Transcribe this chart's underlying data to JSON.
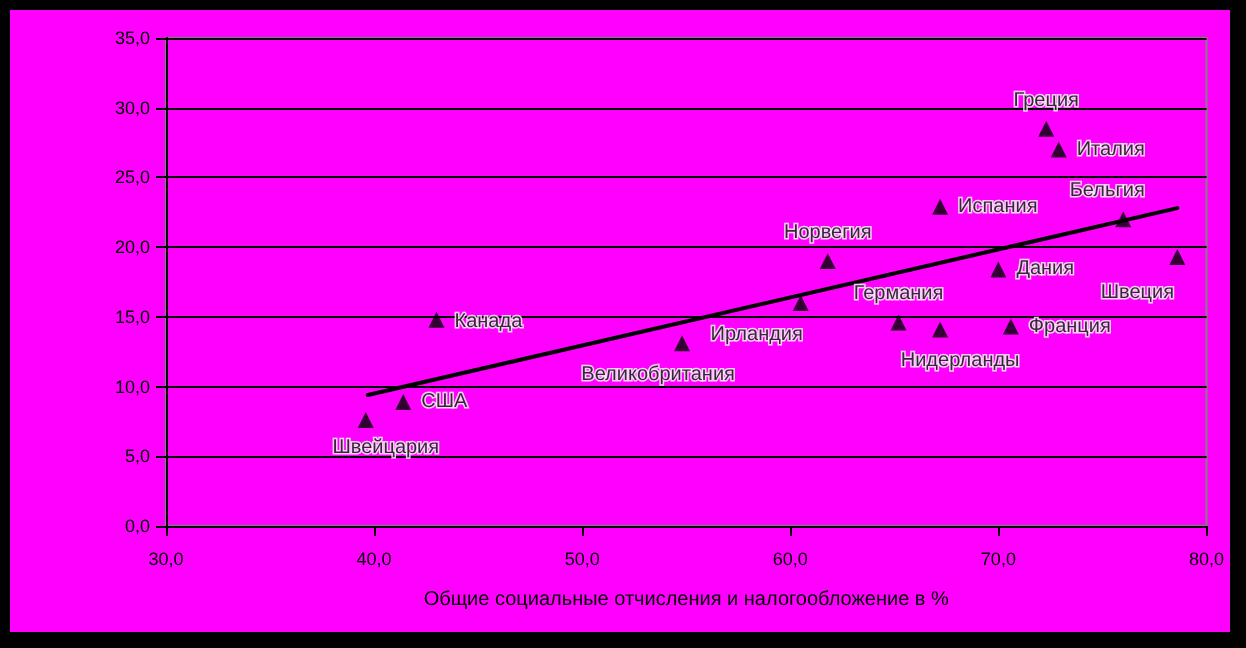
{
  "chart_data": {
    "type": "scatter",
    "xlabel": "Общие социальные отчисления и налогообложение в %",
    "xlim": [
      30,
      80
    ],
    "xticks": [
      {
        "value": 30,
        "label": "30,0"
      },
      {
        "value": 40,
        "label": "40,0"
      },
      {
        "value": 50,
        "label": "50,0"
      },
      {
        "value": 60,
        "label": "60,0"
      },
      {
        "value": 70,
        "label": "70,0"
      },
      {
        "value": 80,
        "label": "80,0"
      }
    ],
    "ylim": [
      0,
      35
    ],
    "yticks": [
      {
        "value": 0,
        "label": "0,0"
      },
      {
        "value": 5,
        "label": "5,0"
      },
      {
        "value": 10,
        "label": "10,0"
      },
      {
        "value": 15,
        "label": "15,0"
      },
      {
        "value": 20,
        "label": "20,0"
      },
      {
        "value": 25,
        "label": "25,0"
      },
      {
        "value": 30,
        "label": "30,0"
      },
      {
        "value": 35,
        "label": "35,0"
      }
    ],
    "grid": "y",
    "legend": false,
    "marker": "triangle",
    "series": [
      {
        "name": "Швейцария",
        "color": "#000000",
        "x": [
          39.6
        ],
        "values": [
          7.6
        ]
      },
      {
        "name": "США",
        "color": "#000000",
        "x": [
          41.4
        ],
        "values": [
          8.9
        ]
      },
      {
        "name": "Канада",
        "color": "#000000",
        "x": [
          43.0
        ],
        "values": [
          14.8
        ]
      },
      {
        "name": "Великобритания",
        "color": "#000000",
        "x": [
          54.8
        ],
        "values": [
          13.1
        ]
      },
      {
        "name": "Ирландия",
        "color": "#000000",
        "x": [
          60.5
        ],
        "values": [
          16.0
        ]
      },
      {
        "name": "Норвегия",
        "color": "#000000",
        "x": [
          61.8
        ],
        "values": [
          19.0
        ]
      },
      {
        "name": "Германия",
        "color": "#000000",
        "x": [
          65.2
        ],
        "values": [
          14.6
        ]
      },
      {
        "name": "Нидерланды",
        "color": "#000000",
        "x": [
          67.2
        ],
        "values": [
          14.1
        ]
      },
      {
        "name": "Испания",
        "color": "#000000",
        "x": [
          67.2
        ],
        "values": [
          22.9
        ]
      },
      {
        "name": "Дания",
        "color": "#000000",
        "x": [
          70.0
        ],
        "values": [
          18.4
        ]
      },
      {
        "name": "Франция",
        "color": "#000000",
        "x": [
          70.6
        ],
        "values": [
          14.3
        ]
      },
      {
        "name": "Греция",
        "color": "#000000",
        "x": [
          72.3
        ],
        "values": [
          28.5
        ]
      },
      {
        "name": "Италия",
        "color": "#000000",
        "x": [
          72.9
        ],
        "values": [
          27.0
        ]
      },
      {
        "name": "Бельгия",
        "color": "#000000",
        "x": [
          76.0
        ],
        "values": [
          22.0
        ]
      },
      {
        "name": "Швеция",
        "color": "#000000",
        "x": [
          78.6
        ],
        "values": [
          19.3
        ]
      },
      {
        "type": "line",
        "color": "#000000",
        "x": [
          39.7,
          78.6
        ],
        "values": [
          9.4,
          22.8
        ],
        "marker": "none"
      }
    ]
  }
}
